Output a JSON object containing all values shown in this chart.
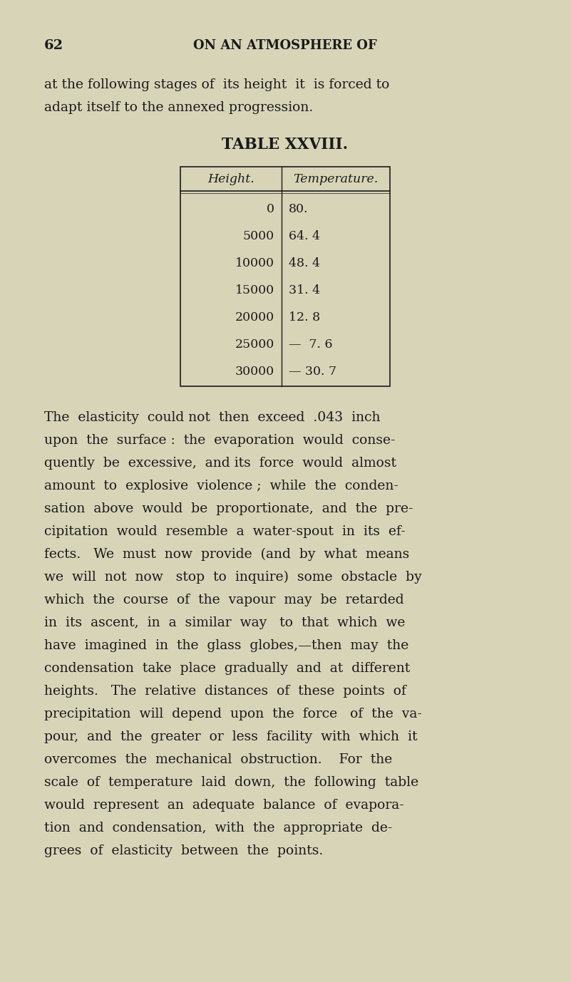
{
  "bg_color": "#d8d4b8",
  "page_number": "62",
  "header": "ON AN ATMOSPHERE OF",
  "para1": "at the following stages of  its height  it  is forced to\nadapt itself to the annexed progression.",
  "table_title": "TABLE XXVIII.",
  "table_headers": [
    "Height.",
    "Temperature."
  ],
  "table_rows": [
    [
      "0",
      "80."
    ],
    [
      "5000",
      "64. 4"
    ],
    [
      "10000",
      "48. 4"
    ],
    [
      "15000",
      "31. 4"
    ],
    [
      "20000",
      "12. 8"
    ],
    [
      "25000",
      "—  7. 6"
    ],
    [
      "30000",
      "— 30. 7"
    ]
  ],
  "para2": "The  elasticity  could not  then  exceed  .043  inch\nupon  the  surface :  the  evaporation  would  conse-\nquently  be  excessive,  and its  force  would  almost\namount  to  explosive  violence ;  while  the  conden-\nsation  above  would  be  proportionate,  and  the  pre-\ncipitation  would  resemble  a  water-spout  in  its  ef-\nfects.   We  must  now  provide  (and  by  what  means\nwe  will  not  now   stop  to  inquire)  some  obstacle  by\nwhich  the  course  of  the  vapour  may  be  retarded\nin  its  ascent,  in  a  similar  way   to  that  which  we\nhave  imagined  in  the  glass  globes,—then  may  the\ncondensation  take  place  gradually  and  at  different\nheights.   The  relative  distances  of  these  points  of\nprecipitation  will  depend  upon  the  force   of  the  va-\npour,  and  the  greater  or  less  facility  with  which  it\novercomes  the  mechanical  obstruction.    For  the\nscale  of  temperature  laid  down,  the  following  table\nwould  represent  an  adequate  balance  of  evapora-\ntion  and  condensation,  with  the  appropriate  de-\ngrees  of  elasticity  between  the  points.",
  "text_color": "#1a1a1a",
  "font_size_body": 13.5,
  "font_size_header": 13.0,
  "font_size_page_num": 14.0,
  "font_size_table_title": 15.5,
  "font_size_table": 12.5
}
